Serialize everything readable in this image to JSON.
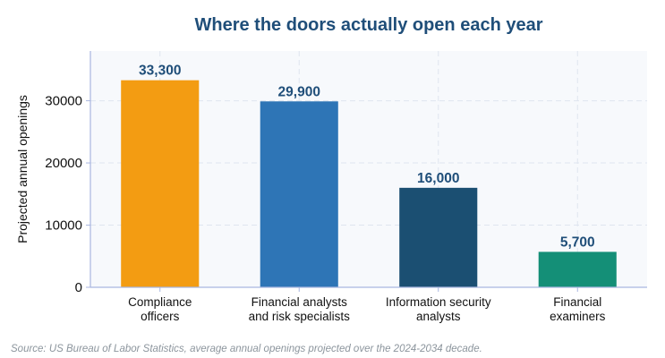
{
  "chart_data": {
    "type": "bar",
    "title": "Where the doors actually open each year",
    "ylabel": "Projected annual openings",
    "xlabel": "",
    "categories": [
      [
        "Compliance",
        "officers"
      ],
      [
        "Financial analysts",
        "and risk specialists"
      ],
      [
        "Information security",
        "analysts"
      ],
      [
        "Financial",
        "examiners"
      ]
    ],
    "values": [
      33300,
      29900,
      16000,
      5700
    ],
    "value_labels": [
      "33,300",
      "29,900",
      "16,000",
      "5,700"
    ],
    "bar_colors": [
      "#f39c12",
      "#2e75b6",
      "#1b4f72",
      "#148f77"
    ],
    "yticks": [
      0,
      10000,
      20000,
      30000
    ],
    "ylim": [
      0,
      38000
    ],
    "grid": true,
    "source": "Source: US Bureau of Labor Statistics, average annual openings projected over the 2024-2034 decade."
  },
  "colors": {
    "title": "#1f4e79",
    "value_label": "#1f4e79",
    "plot_bg": "#f7f9fc",
    "axis": "#a9b6e0",
    "grid": "#dfe5ef"
  }
}
